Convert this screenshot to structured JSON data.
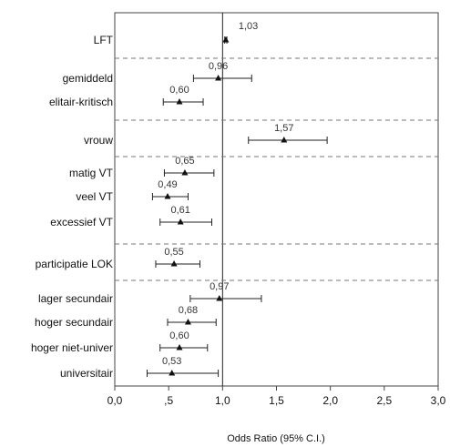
{
  "chart_data": {
    "type": "forest",
    "title": "",
    "xlabel": "Odds Ratio (95% C.I.)",
    "ylabel": "",
    "xlim": [
      0,
      3
    ],
    "x_ticks": [
      {
        "value": 0,
        "label": "0,0"
      },
      {
        "value": 0.5,
        "label": ",5"
      },
      {
        "value": 1,
        "label": "1,0"
      },
      {
        "value": 1.5,
        "label": "1,5"
      },
      {
        "value": 2,
        "label": "2,0"
      },
      {
        "value": 2.5,
        "label": "2,5"
      },
      {
        "value": 3,
        "label": "3,0"
      }
    ],
    "reference_line": 1,
    "rows": [
      {
        "label": "LFT",
        "or": 1.03,
        "lower": 1.02,
        "upper": 1.04,
        "value_label": "1,03",
        "group": 0
      },
      {
        "label": "gemiddeld",
        "or": 0.96,
        "lower": 0.73,
        "upper": 1.27,
        "value_label": "0,96",
        "group": 1
      },
      {
        "label": "elitair-kritisch",
        "or": 0.6,
        "lower": 0.45,
        "upper": 0.82,
        "value_label": "0,60",
        "group": 1
      },
      {
        "label": "vrouw",
        "or": 1.57,
        "lower": 1.24,
        "upper": 1.97,
        "value_label": "1,57",
        "group": 2
      },
      {
        "label": "matig VT",
        "or": 0.65,
        "lower": 0.46,
        "upper": 0.92,
        "value_label": "0,65",
        "group": 3
      },
      {
        "label": "veel VT",
        "or": 0.49,
        "lower": 0.35,
        "upper": 0.68,
        "value_label": "0,49",
        "group": 3
      },
      {
        "label": "excessief VT",
        "or": 0.61,
        "lower": 0.42,
        "upper": 0.9,
        "value_label": "0,61",
        "group": 3
      },
      {
        "label": "participatie LOK",
        "or": 0.55,
        "lower": 0.38,
        "upper": 0.79,
        "value_label": "0,55",
        "group": 4
      },
      {
        "label": "lager secundair",
        "or": 0.97,
        "lower": 0.7,
        "upper": 1.36,
        "value_label": "0,97",
        "group": 5
      },
      {
        "label": "hoger secundair",
        "or": 0.68,
        "lower": 0.49,
        "upper": 0.94,
        "value_label": "0,68",
        "group": 5
      },
      {
        "label": "hoger niet-univer",
        "or": 0.6,
        "lower": 0.42,
        "upper": 0.86,
        "value_label": "0,60",
        "group": 5
      },
      {
        "label": "universitair",
        "or": 0.53,
        "lower": 0.3,
        "upper": 0.96,
        "value_label": "0,53",
        "group": 5
      }
    ],
    "grid": false,
    "group_separators": "dashed"
  }
}
